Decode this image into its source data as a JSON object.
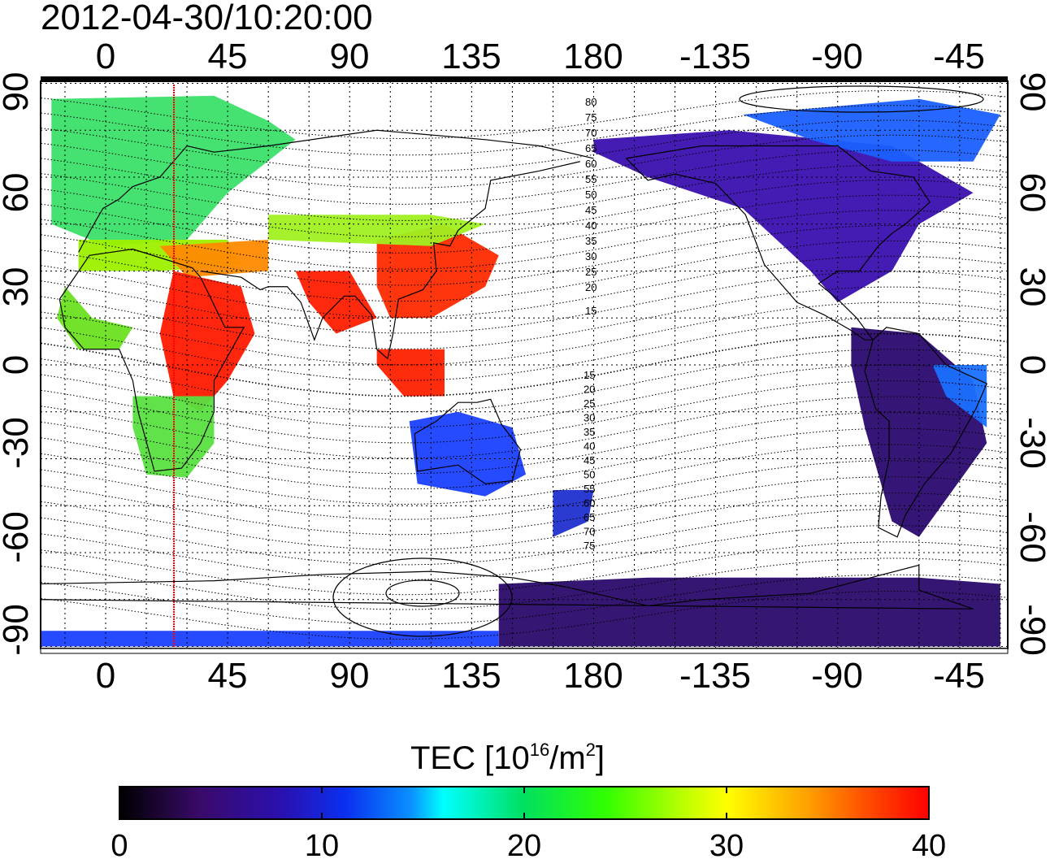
{
  "title": "2012-04-30/10:20:00",
  "map": {
    "lon_ticks_top": [
      "0",
      "45",
      "90",
      "135",
      "180",
      "-135",
      "-90",
      "-45"
    ],
    "lon_ticks_bottom": [
      "0",
      "45",
      "90",
      "135",
      "180",
      "-135",
      "-90",
      "-45"
    ],
    "lat_ticks_left": [
      "90",
      "60",
      "30",
      "0",
      "-30",
      "-60",
      "-90"
    ],
    "lat_ticks_right": [
      "90",
      "60",
      "30",
      "0",
      "-30",
      "-60",
      "-90"
    ],
    "contour_labels_north": [
      "80",
      "75",
      "70",
      "65",
      "60",
      "55",
      "50",
      "45",
      "40",
      "35",
      "30",
      "25",
      "20",
      "15"
    ],
    "contour_labels_south": [
      "15",
      "20",
      "25",
      "30",
      "35",
      "40",
      "45",
      "50",
      "55",
      "60",
      "65",
      "70",
      "75"
    ],
    "marker_meridian_color": "#ff0000"
  },
  "colorbar": {
    "label_main": "TEC  [10",
    "label_sup": "16",
    "label_mid": "/m",
    "label_sup2": "2",
    "label_end": "]",
    "ticks": [
      "0",
      "10",
      "20",
      "30",
      "40"
    ],
    "range": [
      0,
      40
    ],
    "colormap": [
      "#000000",
      "#3a0a6a",
      "#2a10b0",
      "#0a30f0",
      "#0a90ff",
      "#00ffff",
      "#00e060",
      "#30ff00",
      "#c0ff00",
      "#ffff00",
      "#ffa000",
      "#ff5000",
      "#ff0000"
    ]
  },
  "tec_regions": [
    {
      "name": "europe",
      "color": "#39e06a"
    },
    {
      "name": "africa",
      "color": "#ff1a00"
    },
    {
      "name": "asia",
      "color": "#ff2a00"
    },
    {
      "name": "australia",
      "color": "#1a40ff"
    },
    {
      "name": "north-america",
      "color": "#3a10b0"
    },
    {
      "name": "south-america",
      "color": "#2a0a70"
    },
    {
      "name": "antarctica",
      "color": "#2a0a6a"
    }
  ]
}
